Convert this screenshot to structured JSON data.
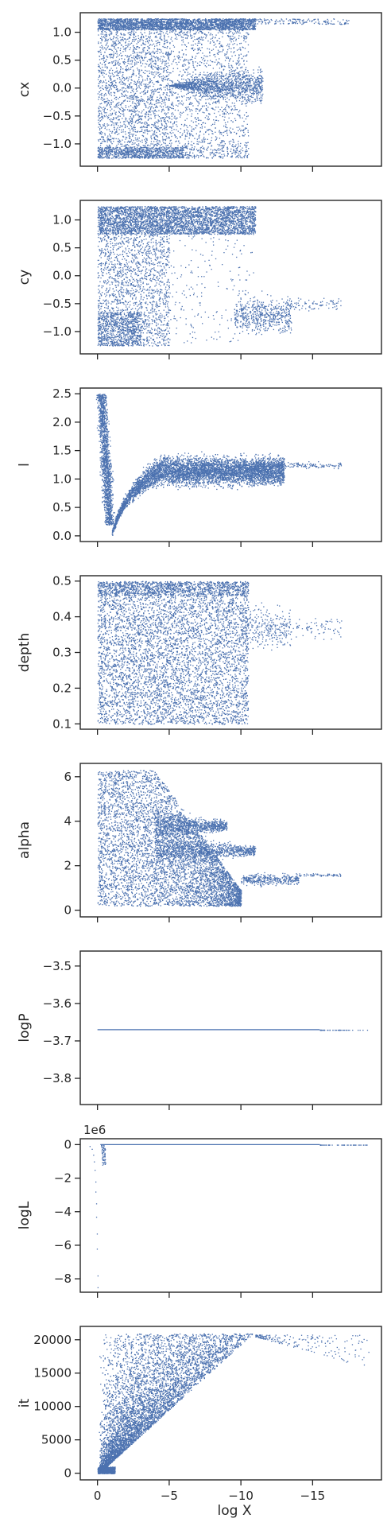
{
  "chart_data": {
    "type": "scatter",
    "shared_x": {
      "label": "log X",
      "lim": [
        1.2,
        -19.8
      ],
      "ticks": [
        0,
        -5,
        -10,
        -15
      ],
      "tick_labels": [
        "0",
        "−5",
        "−10",
        "−15"
      ]
    },
    "marker_color": "#4C72B0",
    "panels": [
      {
        "ylabel": "cx",
        "ylim": [
          -1.4,
          1.35
        ],
        "yticks": [
          -1.0,
          -0.5,
          0.0,
          0.5,
          1.0
        ],
        "ytick_labels": [
          "−1.0",
          "−0.5",
          "0.0",
          "0.5",
          "1.0"
        ],
        "point_cloud": [
          {
            "x": [
              0,
              -10.5
            ],
            "y": [
              -1.25,
              1.25
            ],
            "density": "high"
          },
          {
            "x": [
              -10.5,
              -17
            ],
            "y": [
              1.15,
              1.25
            ],
            "density": "low"
          },
          {
            "x": [
              -5,
              -11.5
            ],
            "y": [
              -0.3,
              0.5
            ],
            "density": "medium"
          }
        ]
      },
      {
        "ylabel": "cy",
        "ylim": [
          -1.4,
          1.35
        ],
        "yticks": [
          -1.0,
          -0.5,
          0.0,
          0.5,
          1.0
        ],
        "ytick_labels": [
          "−1.0",
          "−0.5",
          "0.0",
          "0.5",
          "1.0"
        ],
        "point_cloud": [
          {
            "x": [
              0,
              -11
            ],
            "y": [
              0.7,
              1.25
            ],
            "density": "high"
          },
          {
            "x": [
              0,
              -5
            ],
            "y": [
              -1.25,
              0.7
            ],
            "density": "medium"
          },
          {
            "x": [
              -10,
              -17
            ],
            "y": [
              -1.2,
              0
            ],
            "density": "low"
          }
        ]
      },
      {
        "ylabel": "l",
        "ylim": [
          -0.1,
          2.6
        ],
        "yticks": [
          0.0,
          0.5,
          1.0,
          1.5,
          2.0,
          2.5
        ],
        "ytick_labels": [
          "0.0",
          "0.5",
          "1.0",
          "1.5",
          "2.0",
          "2.5"
        ],
        "point_cloud": [
          {
            "x": [
              0,
              -1
            ],
            "y": [
              0.3,
              2.5
            ],
            "density": "high"
          },
          {
            "x": [
              -1,
              -16
            ],
            "y": [
              0.0,
              1.5
            ],
            "density": "high"
          }
        ]
      },
      {
        "ylabel": "depth",
        "ylim": [
          0.085,
          0.515
        ],
        "yticks": [
          0.1,
          0.2,
          0.3,
          0.4,
          0.5
        ],
        "ytick_labels": [
          "0.1",
          "0.2",
          "0.3",
          "0.4",
          "0.5"
        ],
        "point_cloud": [
          {
            "x": [
              0,
              -10.5
            ],
            "y": [
              0.1,
              0.5
            ],
            "density": "high"
          },
          {
            "x": [
              -10.5,
              -17
            ],
            "y": [
              0.32,
              0.42
            ],
            "density": "low"
          }
        ]
      },
      {
        "ylabel": "alpha",
        "ylim": [
          -0.3,
          6.6
        ],
        "yticks": [
          0,
          2,
          4,
          6
        ],
        "ytick_labels": [
          "0",
          "2",
          "4",
          "6"
        ],
        "point_cloud": [
          {
            "x": [
              0,
              -10
            ],
            "y": [
              0.2,
              6.3
            ],
            "density": "high"
          },
          {
            "x": [
              -10,
              -17
            ],
            "y": [
              1.0,
              2.0
            ],
            "density": "low"
          }
        ]
      },
      {
        "ylabel": "logP",
        "ylim": [
          -3.87,
          -3.46
        ],
        "yticks": [
          -3.5,
          -3.6,
          -3.7,
          -3.8
        ],
        "ytick_labels": [
          "−3.5",
          "−3.6",
          "−3.7",
          "−3.8"
        ],
        "line_y": -3.67,
        "line_x": [
          0,
          -15.5
        ],
        "sparse_x": [
          -15.5,
          -19
        ]
      },
      {
        "ylabel": "logL",
        "ylim": [
          -8.8,
          0.35
        ],
        "offset_label": "1e6",
        "yticks": [
          0,
          -2,
          -4,
          -6,
          -8
        ],
        "ytick_labels": [
          "0",
          "−2",
          "−4",
          "−6",
          "−8"
        ],
        "line_y": 0,
        "line_x": [
          -0.2,
          -15.5
        ],
        "sparse_x": [
          -15.5,
          -19
        ],
        "early_tail": [
          [
            0.0,
            -8.5
          ],
          [
            0.0,
            -7.8
          ],
          [
            0.05,
            -6.2
          ],
          [
            0.05,
            -5.3
          ],
          [
            0.1,
            -4.3
          ],
          [
            0.1,
            -3.5
          ],
          [
            0.15,
            -2.8
          ],
          [
            0.15,
            -2.2
          ],
          [
            0.2,
            -1.5
          ],
          [
            0.25,
            -1.0
          ],
          [
            0.3,
            -0.6
          ],
          [
            0.4,
            -0.25
          ],
          [
            0.55,
            -0.08
          ]
        ]
      },
      {
        "ylabel": "it",
        "ylim": [
          -1000,
          22000
        ],
        "yticks": [
          0,
          5000,
          10000,
          15000,
          20000
        ],
        "ytick_labels": [
          "0",
          "5000",
          "10000",
          "15000",
          "20000"
        ],
        "band": {
          "upper_slope_per_logX": -1950,
          "max_it": 20950
        },
        "tail_x": [
          -11,
          -19
        ]
      }
    ]
  }
}
